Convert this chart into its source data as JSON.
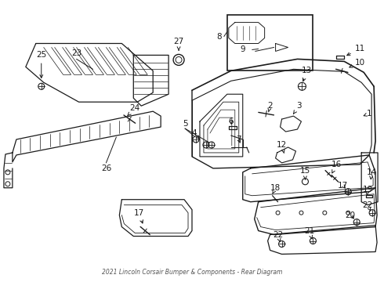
{
  "title": "2021 Lincoln Corsair Bumper & Components - Rear Diagram",
  "bg_color": "#ffffff",
  "line_color": "#1a1a1a",
  "fig_w": 4.9,
  "fig_h": 3.6,
  "dpi": 100
}
